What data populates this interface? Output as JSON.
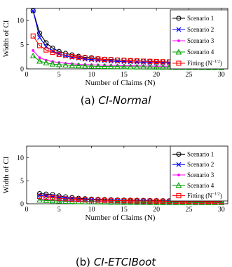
{
  "chart_data": [
    {
      "type": "line",
      "caption_label": "(a)",
      "caption_name": "CI-Normal",
      "xlabel": "Number of Claims (N)",
      "ylabel": "Width of CI",
      "xlim": [
        0,
        31
      ],
      "ylim": [
        0,
        12.5
      ],
      "xticks": [
        0,
        5,
        10,
        15,
        20,
        25,
        30
      ],
      "yticks": [
        0,
        5,
        10
      ],
      "legend_position": "top-right",
      "x": [
        1,
        2,
        3,
        4,
        5,
        6,
        7,
        8,
        9,
        10,
        11,
        12,
        13,
        14,
        15,
        16,
        17,
        18,
        19,
        20,
        21,
        22,
        23,
        24,
        25,
        26,
        27,
        28,
        29,
        30
      ],
      "series": [
        {
          "name": "Scenario 1",
          "color": "#000000",
          "marker": "circle",
          "values": [
            12.0,
            7.4,
            5.4,
            4.3,
            3.6,
            3.2,
            2.9,
            2.6,
            2.4,
            2.3,
            2.1,
            2.0,
            1.95,
            1.85,
            1.8,
            1.7,
            1.65,
            1.6,
            1.55,
            1.5,
            1.45,
            1.42,
            1.38,
            1.35,
            1.32,
            1.28,
            1.25,
            1.22,
            1.2,
            1.18
          ]
        },
        {
          "name": "Scenario 2",
          "color": "#0000ff",
          "marker": "x",
          "values": [
            12.0,
            6.5,
            4.6,
            3.7,
            3.1,
            2.7,
            2.4,
            2.2,
            2.0,
            1.9,
            1.8,
            1.7,
            1.6,
            1.55,
            1.5,
            1.45,
            1.4,
            1.35,
            1.3,
            1.27,
            1.24,
            1.2,
            1.17,
            1.15,
            1.12,
            1.1,
            1.08,
            1.06,
            1.04,
            1.02
          ]
        },
        {
          "name": "Scenario 3",
          "color": "#ff00ff",
          "marker": "dot",
          "values": [
            3.8,
            2.3,
            1.8,
            1.5,
            1.3,
            1.15,
            1.05,
            0.95,
            0.9,
            0.85,
            0.8,
            0.76,
            0.72,
            0.7,
            0.67,
            0.65,
            0.62,
            0.6,
            0.58,
            0.57,
            0.55,
            0.54,
            0.52,
            0.51,
            0.5,
            0.49,
            0.48,
            0.47,
            0.46,
            0.45
          ]
        },
        {
          "name": "Scenario 4",
          "color": "#00a000",
          "marker": "triangle",
          "values": [
            2.7,
            1.6,
            1.25,
            1.0,
            0.88,
            0.78,
            0.7,
            0.65,
            0.6,
            0.56,
            0.53,
            0.5,
            0.48,
            0.46,
            0.44,
            0.42,
            0.41,
            0.4,
            0.38,
            0.37,
            0.36,
            0.35,
            0.34,
            0.33,
            0.32,
            0.32,
            0.31,
            0.3,
            0.3,
            0.29
          ]
        },
        {
          "name": "Fitting (N",
          "name_sup": "−1/2",
          "name_end": ")",
          "color": "#ff0000",
          "marker": "square",
          "values": [
            6.8,
            4.8,
            3.9,
            3.4,
            3.0,
            2.78,
            2.57,
            2.4,
            2.27,
            2.15,
            2.05,
            1.96,
            1.89,
            1.82,
            1.76,
            1.7,
            1.65,
            1.6,
            1.56,
            1.52,
            1.48,
            1.45,
            1.42,
            1.39,
            1.36,
            1.33,
            1.31,
            1.28,
            1.26,
            1.24
          ]
        }
      ]
    },
    {
      "type": "line",
      "caption_label": "(b)",
      "caption_name": "CI-ETCIBoot",
      "xlabel": "Number of Claims (N)",
      "ylabel": "Width of CI",
      "xlim": [
        0,
        31
      ],
      "ylim": [
        0,
        12.5
      ],
      "xticks": [
        0,
        5,
        10,
        15,
        20,
        25,
        30
      ],
      "yticks": [
        0,
        5,
        10
      ],
      "legend_position": "top-right",
      "x": [
        2,
        3,
        4,
        5,
        6,
        7,
        8,
        9,
        10,
        11,
        12,
        13,
        14,
        15,
        16,
        17,
        18,
        19,
        20,
        21,
        22,
        23,
        24,
        25,
        26,
        27,
        28,
        29,
        30
      ],
      "series": [
        {
          "name": "Scenario 1",
          "color": "#000000",
          "marker": "circle",
          "values": [
            2.2,
            2.1,
            2.0,
            1.7,
            1.5,
            1.35,
            1.2,
            1.1,
            1.0,
            0.95,
            0.9,
            0.85,
            0.82,
            0.8,
            0.78,
            0.75,
            0.73,
            0.7,
            0.68,
            0.66,
            0.64,
            0.62,
            0.61,
            0.6,
            0.58,
            0.57,
            0.56,
            0.55,
            0.54
          ]
        },
        {
          "name": "Scenario 2",
          "color": "#0000ff",
          "marker": "x",
          "values": [
            1.8,
            1.7,
            1.6,
            1.4,
            1.25,
            1.12,
            1.02,
            0.94,
            0.88,
            0.83,
            0.79,
            0.75,
            0.72,
            0.7,
            0.68,
            0.66,
            0.64,
            0.62,
            0.6,
            0.59,
            0.57,
            0.56,
            0.55,
            0.54,
            0.52,
            0.51,
            0.5,
            0.49,
            0.48
          ]
        },
        {
          "name": "Scenario 3",
          "color": "#ff00ff",
          "marker": "dot",
          "values": [
            1.0,
            0.9,
            0.82,
            0.75,
            0.68,
            0.62,
            0.58,
            0.54,
            0.5,
            0.48,
            0.46,
            0.44,
            0.42,
            0.41,
            0.4,
            0.39,
            0.38,
            0.37,
            0.36,
            0.35,
            0.34,
            0.33,
            0.33,
            0.32,
            0.31,
            0.31,
            0.3,
            0.3,
            0.29
          ]
        },
        {
          "name": "Scenario 4",
          "color": "#00a000",
          "marker": "triangle",
          "values": [
            0.8,
            0.72,
            0.65,
            0.6,
            0.55,
            0.5,
            0.47,
            0.44,
            0.42,
            0.4,
            0.38,
            0.36,
            0.35,
            0.34,
            0.33,
            0.32,
            0.31,
            0.3,
            0.29,
            0.28,
            0.28,
            0.27,
            0.27,
            0.26,
            0.26,
            0.25,
            0.25,
            0.24,
            0.24
          ]
        },
        {
          "name": "Fitting (N",
          "name_sup": "−1/2",
          "name_end": ")",
          "color": "#ff0000",
          "marker": "square",
          "values": [
            1.6,
            1.45,
            1.3,
            1.18,
            1.08,
            1.0,
            0.93,
            0.87,
            0.83,
            0.79,
            0.75,
            0.72,
            0.69,
            0.67,
            0.65,
            0.63,
            0.61,
            0.59,
            0.58,
            0.56,
            0.55,
            0.54,
            0.53,
            0.52,
            0.51,
            0.5,
            0.49,
            0.48,
            0.47
          ]
        }
      ]
    }
  ]
}
